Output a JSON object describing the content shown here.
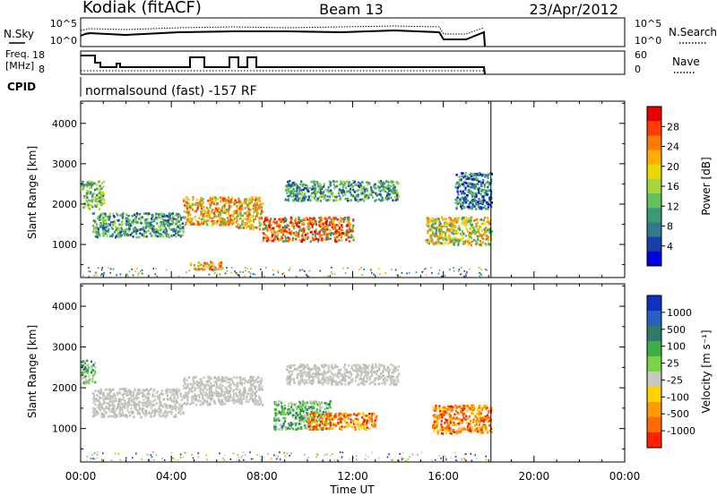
{
  "header": {
    "station": "Kodiak (fitACF)",
    "beam": "Beam 13",
    "date": "23/Apr/2012"
  },
  "noise_panel": {
    "left_label": "N.Sky",
    "right_label": "N.Search",
    "left_ticks": [
      "10^5",
      "10^0"
    ],
    "right_ticks": [
      "10^5",
      "10^0"
    ]
  },
  "freq_panel": {
    "left_label_line1": "Freq.",
    "left_label_line2": "[MHz]",
    "left_ticks": [
      "18",
      "8"
    ],
    "right_label": "Nave",
    "right_ticks": [
      "60",
      "0"
    ]
  },
  "cpid": {
    "label": "CPID",
    "value": "normalsound (fast) -157 RF"
  },
  "power_panel": {
    "ylabel": "Slant Range [km]",
    "cbar_label": "Power [dB]",
    "cbar_ticks": [
      "28",
      "24",
      "20",
      "16",
      "12",
      "8",
      "4"
    ],
    "cbar_colors": [
      "#e60000",
      "#ff3d00",
      "#ff7a00",
      "#ffae00",
      "#e8d800",
      "#a9d63c",
      "#63c05a",
      "#3a9a72",
      "#2e7b8c",
      "#1a3ea8",
      "#0000e6"
    ]
  },
  "velocity_panel": {
    "ylabel": "Slant Range [km]",
    "cbar_label": "Velocity [m s⁻¹]",
    "cbar_ticks": [
      "1000",
      "500",
      "100",
      "25",
      "-25",
      "-100",
      "-500",
      "-1000"
    ],
    "cbar_colors": [
      "#1030c0",
      "#2a5fc0",
      "#2e7b6a",
      "#3cb043",
      "#7ad44a",
      "#c8c8c0",
      "#ffd200",
      "#ff9a00",
      "#ff6a00",
      "#ff2000"
    ]
  },
  "x_axis": {
    "label": "Time UT",
    "ticks": [
      "00:00",
      "04:00",
      "08:00",
      "12:00",
      "16:00",
      "20:00",
      "00:00"
    ]
  },
  "chart_data": {
    "type": "heatmap",
    "x_range_hours": [
      0,
      24
    ],
    "y_range_km": [
      180,
      4550
    ],
    "y_ticks": [
      1000,
      2000,
      3000,
      4000
    ],
    "data_end_hours": 18.1,
    "power_regions": [
      {
        "t0": 0.0,
        "t1": 1.0,
        "r0": 1900,
        "r1": 2600,
        "level": "green-yellow"
      },
      {
        "t0": 0.5,
        "t1": 4.5,
        "r0": 1200,
        "r1": 1800,
        "level": "green"
      },
      {
        "t0": 4.5,
        "t1": 6.8,
        "r0": 1500,
        "r1": 2200,
        "level": "orange"
      },
      {
        "t0": 4.8,
        "t1": 6.2,
        "r0": 400,
        "r1": 600,
        "level": "orange"
      },
      {
        "t0": 6.8,
        "t1": 8.0,
        "r0": 1400,
        "r1": 2200,
        "level": "orange"
      },
      {
        "t0": 8.0,
        "t1": 12.0,
        "r0": 1100,
        "r1": 1700,
        "level": "red"
      },
      {
        "t0": 9.0,
        "t1": 14.0,
        "r0": 2100,
        "r1": 2600,
        "level": "green"
      },
      {
        "t0": 15.2,
        "t1": 18.1,
        "r0": 1000,
        "r1": 1700,
        "level": "green-orange"
      },
      {
        "t0": 16.5,
        "t1": 18.1,
        "r0": 1900,
        "r1": 2800,
        "level": "blue-green"
      }
    ],
    "velocity_regions": [
      {
        "t0": 0.0,
        "t1": 0.6,
        "r0": 2100,
        "r1": 2700,
        "level": "100"
      },
      {
        "t0": 0.5,
        "t1": 4.5,
        "r0": 1300,
        "r1": 2000,
        "level": "0"
      },
      {
        "t0": 4.5,
        "t1": 8.0,
        "r0": 1600,
        "r1": 2300,
        "level": "0"
      },
      {
        "t0": 8.5,
        "t1": 11.0,
        "r0": 1000,
        "r1": 1700,
        "level": "100"
      },
      {
        "t0": 10.0,
        "t1": 13.0,
        "r0": 1000,
        "r1": 1400,
        "level": "-500"
      },
      {
        "t0": 15.5,
        "t1": 18.1,
        "r0": 900,
        "r1": 1600,
        "level": "-500"
      },
      {
        "t0": 9.0,
        "t1": 14.0,
        "r0": 2100,
        "r1": 2600,
        "level": "0"
      }
    ]
  }
}
